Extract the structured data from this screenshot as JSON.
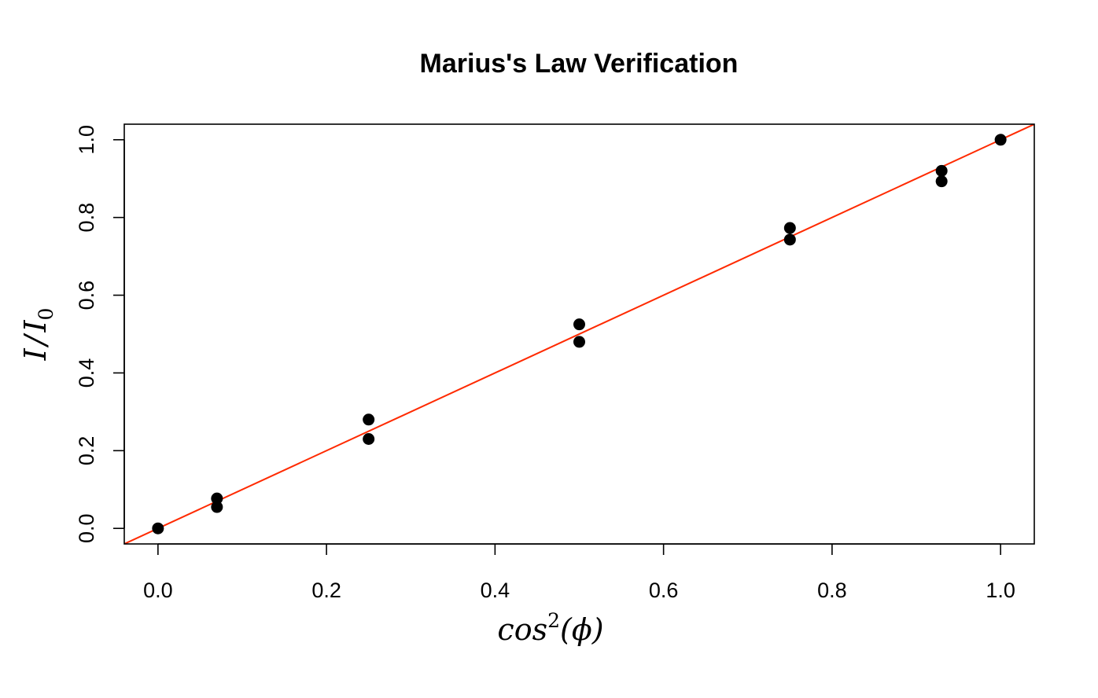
{
  "chart_data": {
    "type": "scatter",
    "title": "Marius's Law Verification",
    "xlabel": {
      "base": "cos",
      "superscript": "2",
      "argument": "(ϕ)"
    },
    "ylabel": {
      "base": "I",
      "separator": "/",
      "denominator": "I",
      "subscript": "0"
    },
    "xlim": [
      -0.04,
      1.04
    ],
    "ylim": [
      -0.04,
      1.04
    ],
    "x_ticks": [
      0.0,
      0.2,
      0.4,
      0.6,
      0.8,
      1.0
    ],
    "x_tick_labels": [
      "0.0",
      "0.2",
      "0.4",
      "0.6",
      "0.8",
      "1.0"
    ],
    "y_ticks": [
      0.0,
      0.2,
      0.4,
      0.6,
      0.8,
      1.0
    ],
    "y_tick_labels": [
      "0.0",
      "0.2",
      "0.4",
      "0.6",
      "0.8",
      "1.0"
    ],
    "grid": false,
    "points": [
      {
        "x": 0.0,
        "y": 0.0
      },
      {
        "x": 0.07,
        "y": 0.077
      },
      {
        "x": 0.07,
        "y": 0.055
      },
      {
        "x": 0.25,
        "y": 0.28
      },
      {
        "x": 0.25,
        "y": 0.23
      },
      {
        "x": 0.5,
        "y": 0.525
      },
      {
        "x": 0.5,
        "y": 0.48
      },
      {
        "x": 0.75,
        "y": 0.773
      },
      {
        "x": 0.75,
        "y": 0.743
      },
      {
        "x": 0.93,
        "y": 0.92
      },
      {
        "x": 0.93,
        "y": 0.893
      },
      {
        "x": 1.0,
        "y": 1.0
      }
    ],
    "fit_line": {
      "slope": 1.0,
      "intercept": 0.0,
      "color": "#ff2a00"
    },
    "point_color": "#000000"
  }
}
